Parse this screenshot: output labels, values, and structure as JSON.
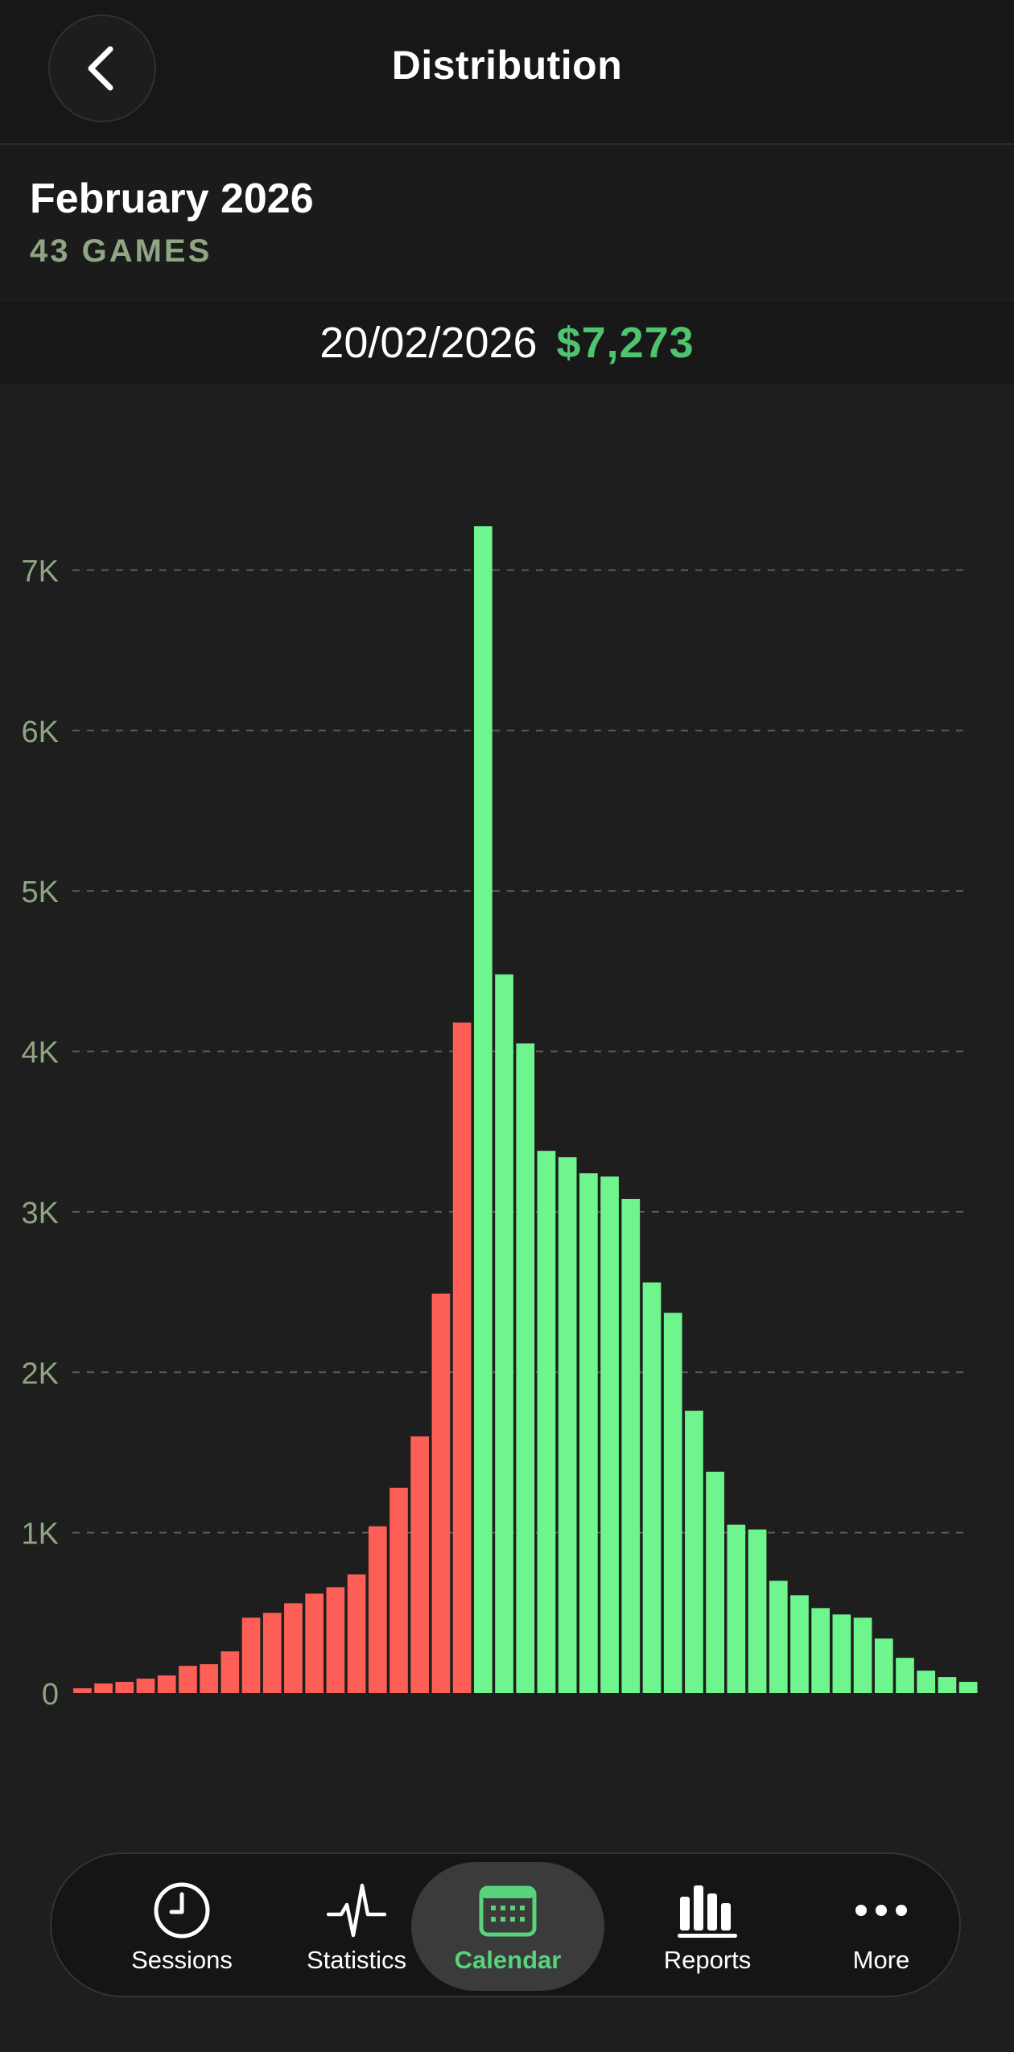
{
  "header": {
    "title": "Distribution"
  },
  "summary": {
    "month": "February 2026",
    "games": "43 GAMES"
  },
  "selection": {
    "date": "20/02/2026",
    "amount": "$7,273"
  },
  "colors": {
    "positive": "#6ef58d",
    "negative": "#fd5f56",
    "amount": "#4ec46f",
    "accent": "#59d27c"
  },
  "chart_data": {
    "type": "bar",
    "ylim": [
      0,
      7273
    ],
    "yticks": [
      {
        "value": 0,
        "label": "0"
      },
      {
        "value": 1000,
        "label": "1K"
      },
      {
        "value": 2000,
        "label": "2K"
      },
      {
        "value": 3000,
        "label": "3K"
      },
      {
        "value": 4000,
        "label": "4K"
      },
      {
        "value": 5000,
        "label": "5K"
      },
      {
        "value": 6000,
        "label": "6K"
      },
      {
        "value": 7000,
        "label": "7K"
      }
    ],
    "grid": true,
    "negative_count": 19,
    "values": [
      30,
      60,
      70,
      90,
      110,
      170,
      180,
      260,
      470,
      500,
      560,
      620,
      660,
      740,
      1040,
      1280,
      1600,
      2490,
      4180,
      7273,
      4480,
      4050,
      3380,
      3340,
      3240,
      3220,
      3080,
      2560,
      2370,
      1760,
      1380,
      1050,
      1020,
      700,
      610,
      530,
      490,
      470,
      340,
      220,
      140,
      100,
      70
    ]
  },
  "tabs": [
    {
      "label": "Sessions",
      "icon": "clock-icon"
    },
    {
      "label": "Statistics",
      "icon": "pulse-icon"
    },
    {
      "label": "Calendar",
      "icon": "calendar-icon"
    },
    {
      "label": "Reports",
      "icon": "bar-chart-icon"
    },
    {
      "label": "More",
      "icon": "more-icon"
    }
  ]
}
